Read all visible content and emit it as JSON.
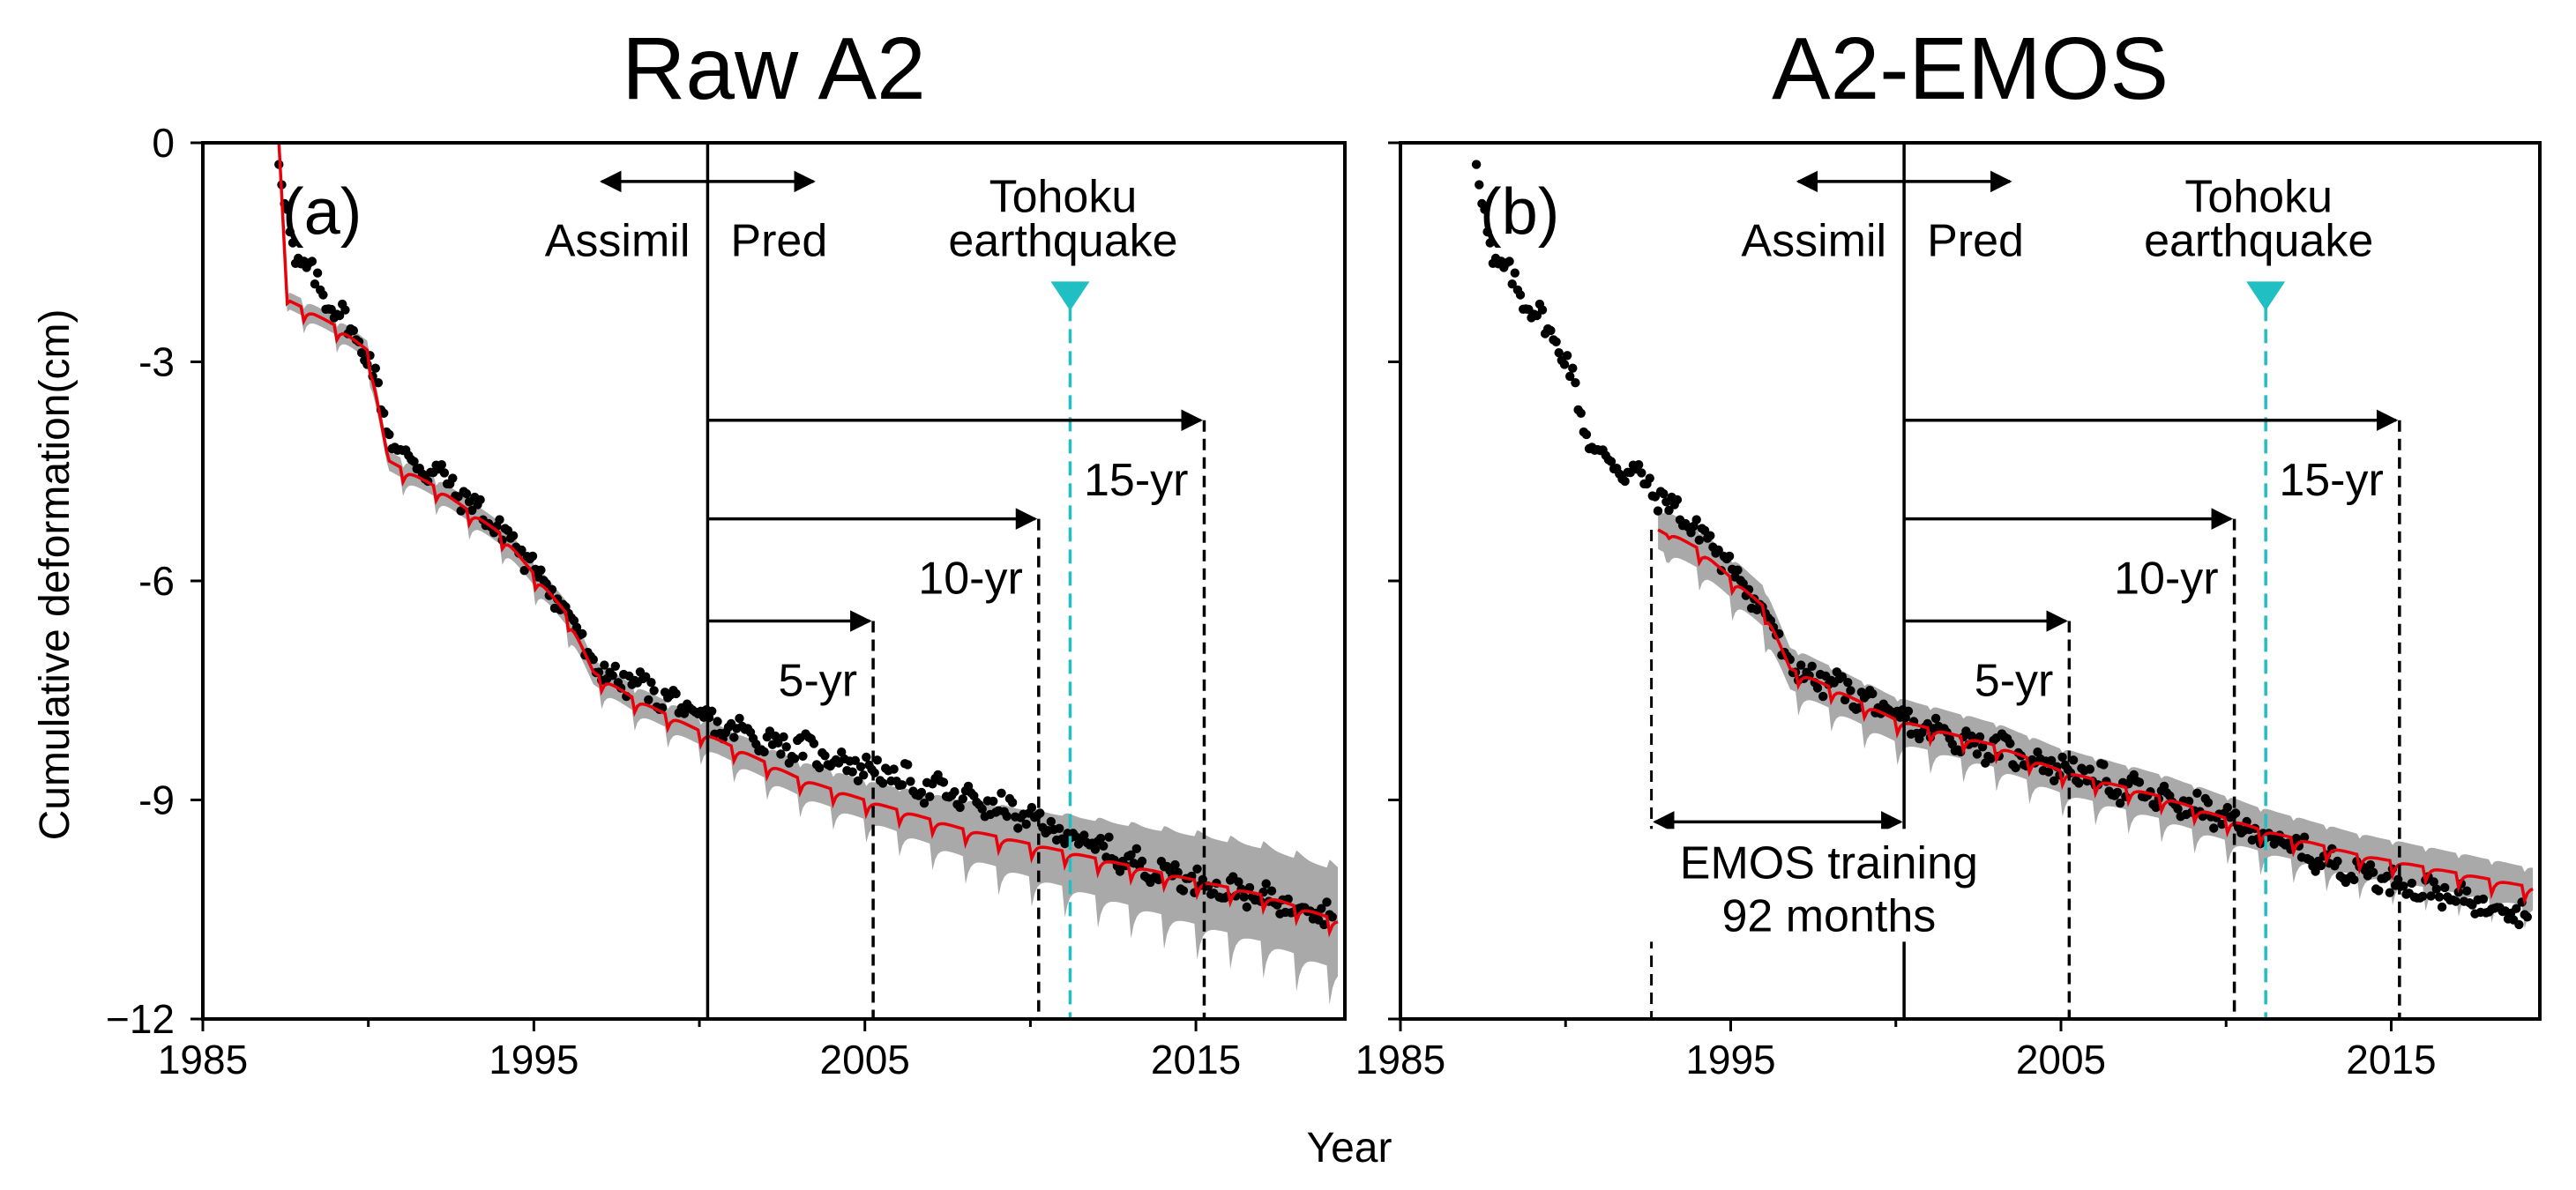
{
  "chart_data": {
    "type": "line",
    "ylabel": "Cumulative deformation(cm)",
    "xlabel": "Year",
    "xlim": [
      1985,
      2019.5
    ],
    "ylim": [
      -12,
      0
    ],
    "xticks": [
      1985,
      1995,
      2005,
      2015
    ],
    "xtick_labels": [
      "1985",
      "1995",
      "2005",
      "2015"
    ],
    "yticks": [
      0,
      -3,
      -6,
      -9,
      -12
    ],
    "ytick_labels": [
      "0",
      "-3",
      "-6",
      "-9",
      "−12"
    ],
    "colors": {
      "observed": "#000000",
      "mean": "#e8000b",
      "spread": "#a9a9a9",
      "earthquake": "#1fbfc4"
    },
    "panels": [
      {
        "title": "Raw A2",
        "letter": "(a)",
        "assimilation_end": 2000.25,
        "training_start": null,
        "earthquake_year": 2011.2,
        "earthquake_label": [
          "Tohoku",
          "earthquake"
        ],
        "assimil_label": "Assimil",
        "pred_label": "Pred",
        "horizons": [
          {
            "label": "5-yr",
            "end": 2005.25,
            "y": -6.55
          },
          {
            "label": "10-yr",
            "end": 2010.25,
            "y": -5.15
          },
          {
            "label": "15-yr",
            "end": 2015.25,
            "y": -3.8
          }
        ],
        "training_label": null
      },
      {
        "title": "A2-EMOS",
        "letter": "(b)",
        "assimilation_end": 2000.25,
        "training_start": 1992.6,
        "earthquake_year": 2011.2,
        "earthquake_label": [
          "Tohoku",
          "earthquake"
        ],
        "assimil_label": "Assimil",
        "pred_label": "Pred",
        "horizons": [
          {
            "label": "5-yr",
            "end": 2005.25,
            "y": -6.55
          },
          {
            "label": "10-yr",
            "end": 2010.25,
            "y": -5.15
          },
          {
            "label": "15-yr",
            "end": 2015.25,
            "y": -3.8
          }
        ],
        "training_label": [
          "EMOS training",
          "92 months"
        ]
      }
    ],
    "observed_trend": {
      "years": [
        1987.3,
        1987.8,
        1988.5,
        1989.2,
        1990.0,
        1990.5,
        1991.0,
        1992.0,
        1993.0,
        1994.0,
        1995.0,
        1996.0,
        1996.6,
        1997.0,
        1998.0,
        1999.0,
        2000.0,
        2001.0,
        2003.0,
        2005.0,
        2007.0,
        2009.0,
        2011.0,
        2013.0,
        2015.0,
        2017.0,
        2019.0
      ],
      "values": [
        -0.3,
        -1.6,
        -1.95,
        -2.4,
        -2.9,
        -3.8,
        -4.3,
        -4.5,
        -4.9,
        -5.3,
        -5.8,
        -6.4,
        -7.0,
        -7.25,
        -7.4,
        -7.6,
        -7.9,
        -8.05,
        -8.3,
        -8.55,
        -8.85,
        -9.1,
        -9.45,
        -9.85,
        -10.1,
        -10.35,
        -10.5
      ]
    },
    "raw_a2_mean": {
      "years": [
        1987.3,
        1987.55,
        1988.0,
        1989.0,
        1990.0,
        1990.6,
        1992.0,
        1994.0,
        1996.0,
        1996.8,
        1998.0,
        2000.0,
        2003.0,
        2005.0,
        2008.0,
        2011.0,
        2014.0,
        2017.0,
        2019.3
      ],
      "values": [
        0.0,
        -2.2,
        -2.3,
        -2.55,
        -2.9,
        -4.4,
        -4.75,
        -5.4,
        -6.5,
        -7.3,
        -7.65,
        -8.1,
        -8.75,
        -9.05,
        -9.45,
        -9.75,
        -10.05,
        -10.35,
        -10.7
      ],
      "spread_halfwidth": {
        "years": [
          1987.3,
          2000.0,
          2005.0,
          2010.0,
          2015.0,
          2019.3
        ],
        "values": [
          0.15,
          0.25,
          0.35,
          0.6,
          0.8,
          0.9
        ]
      }
    },
    "emos_mean": {
      "years": [
        1992.8,
        1994.0,
        1995.0,
        1996.0,
        1996.8,
        1998.0,
        2000.0,
        2003.0,
        2005.0,
        2008.0,
        2011.0,
        2014.0,
        2017.0,
        2019.3
      ],
      "values": [
        -5.3,
        -5.6,
        -6.0,
        -6.4,
        -7.25,
        -7.5,
        -7.95,
        -8.3,
        -8.65,
        -9.0,
        -9.45,
        -9.8,
        -10.05,
        -10.25
      ],
      "spread_halfwidth": {
        "years": [
          1992.8,
          2000.0,
          2010.0,
          2019.3
        ],
        "values": [
          0.35,
          0.4,
          0.4,
          0.35
        ]
      }
    }
  }
}
